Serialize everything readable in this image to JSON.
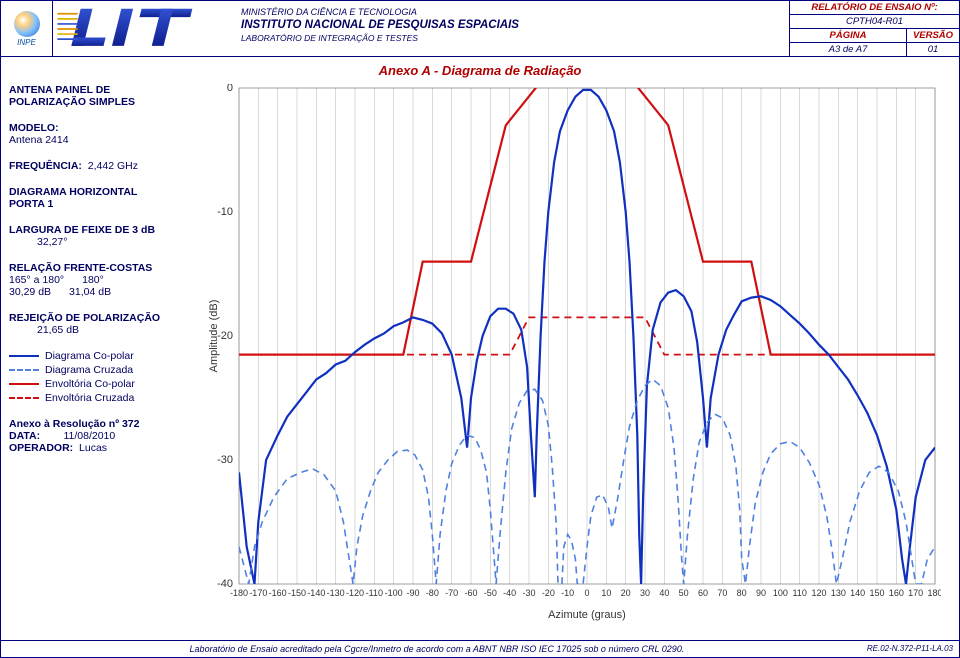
{
  "header": {
    "logo_text": "INPE",
    "lit_text": "LIT",
    "ministerio": "MINISTÉRIO DA CIÊNCIA E TECNOLOGIA",
    "instituto": "INSTITUTO NACIONAL DE PESQUISAS ESPACIAIS",
    "lab": "LABORATÓRIO DE INTEGRAÇÃO E TESTES",
    "info": {
      "relatorio_lbl": "RELATÓRIO DE ENSAIO Nº:",
      "relatorio_val": "CPTH04-R01",
      "pagina_lbl": "PÁGINA",
      "versao_lbl": "VERSÃO",
      "pagina_val": "A3   de   A7",
      "versao_val": "01"
    }
  },
  "title": "Anexo A - Diagrama de Radiação",
  "side": {
    "antena_l1": "ANTENA PAINEL DE",
    "antena_l2": "POLARIZAÇÃO SIMPLES",
    "modelo_lbl": "MODELO:",
    "modelo_val": "Antena 2414",
    "freq_lbl": "FREQUÊNCIA:",
    "freq_val": "2,442 GHz",
    "diag_lbl": "DIAGRAMA HORIZONTAL",
    "porta_lbl": "PORTA 1",
    "larg_lbl": "LARGURA DE FEIXE DE 3 dB",
    "larg_val": "32,27°",
    "rel_lbl": "RELAÇÃO FRENTE-COSTAS",
    "rel_c1a": "165° a 180°",
    "rel_c1b": "180°",
    "rel_c2a": "30,29 dB",
    "rel_c2b": "31,04 dB",
    "rej_lbl": "REJEIÇÃO DE POLARIZAÇÃO",
    "rej_val": "21,65 dB",
    "leg1": "Diagrama Co-polar",
    "leg2": "Diagrama Cruzada",
    "leg3": "Envoltória Co-polar",
    "leg4": "Envoltória Cruzada",
    "anexo": "Anexo à Resolução nº 372",
    "data_lbl": "DATA:",
    "data_val": "11/08/2010",
    "oper_lbl": "OPERADOR:",
    "oper_val": "Lucas"
  },
  "footer": {
    "text": "Laboratório de Ensaio acreditado pela Cgcre/Inmetro de acordo com a ABNT NBR ISO IEC 17025 sob o número CRL 0290.",
    "code": "RE.02-N.372-P11-LA.03"
  },
  "chart": {
    "type": "line",
    "x_label": "Azimute (graus)",
    "y_label": "Amplitude (dB)",
    "xlim": [
      -180,
      180
    ],
    "ylim": [
      -40,
      0
    ],
    "x_ticks": [
      -180,
      -170,
      -160,
      -150,
      -140,
      -130,
      -120,
      -110,
      -100,
      -90,
      -80,
      -70,
      -60,
      -50,
      -40,
      -30,
      -20,
      -10,
      0,
      10,
      20,
      30,
      40,
      50,
      60,
      70,
      80,
      90,
      100,
      110,
      120,
      130,
      140,
      150,
      160,
      170,
      180
    ],
    "y_ticks": [
      0,
      -10,
      -20,
      -30,
      -40
    ],
    "grid_color": "#c0c0c0",
    "background_color": "#ffffff",
    "axis_font_size": 9,
    "colors": {
      "copolar": "#1030c0",
      "cruzada": "#5080e0",
      "env_copolar": "#d01010",
      "env_cruzada": "#d01010"
    },
    "line_widths": {
      "copolar": 2.2,
      "cruzada": 1.6,
      "env_copolar": 2.2,
      "env_cruzada": 1.8
    },
    "env_copolar": [
      [
        -180,
        -21.5
      ],
      [
        -95,
        -21.5
      ],
      [
        -85,
        -14
      ],
      [
        -60,
        -14
      ],
      [
        -42,
        -3
      ],
      [
        -25,
        0.3
      ],
      [
        25,
        0.3
      ],
      [
        42,
        -3
      ],
      [
        60,
        -14
      ],
      [
        85,
        -14
      ],
      [
        95,
        -21.5
      ],
      [
        180,
        -21.5
      ]
    ],
    "env_cruzada": [
      [
        -180,
        -21.5
      ],
      [
        -40,
        -21.5
      ],
      [
        -30,
        -18.5
      ],
      [
        30,
        -18.5
      ],
      [
        40,
        -21.5
      ],
      [
        180,
        -21.5
      ]
    ],
    "copolar": [
      [
        -180,
        -31
      ],
      [
        -176,
        -37
      ],
      [
        -172,
        -40
      ],
      [
        -170,
        -35
      ],
      [
        -166,
        -30
      ],
      [
        -160,
        -28
      ],
      [
        -155,
        -26.5
      ],
      [
        -150,
        -25.5
      ],
      [
        -145,
        -24.5
      ],
      [
        -140,
        -23.5
      ],
      [
        -135,
        -23
      ],
      [
        -130,
        -22.3
      ],
      [
        -125,
        -22
      ],
      [
        -120,
        -21.3
      ],
      [
        -115,
        -20.7
      ],
      [
        -110,
        -20.2
      ],
      [
        -105,
        -19.8
      ],
      [
        -100,
        -19.2
      ],
      [
        -95,
        -18.9
      ],
      [
        -90,
        -18.5
      ],
      [
        -85,
        -18.7
      ],
      [
        -80,
        -19
      ],
      [
        -75,
        -19.8
      ],
      [
        -70,
        -21.5
      ],
      [
        -65,
        -25
      ],
      [
        -62,
        -29
      ],
      [
        -60,
        -25
      ],
      [
        -57,
        -22
      ],
      [
        -54,
        -20
      ],
      [
        -50,
        -18.4
      ],
      [
        -46,
        -17.8
      ],
      [
        -42,
        -17.8
      ],
      [
        -38,
        -18.2
      ],
      [
        -34,
        -19.5
      ],
      [
        -31,
        -22.5
      ],
      [
        -29,
        -28
      ],
      [
        -27,
        -33
      ],
      [
        -26,
        -28
      ],
      [
        -24,
        -20
      ],
      [
        -22,
        -14
      ],
      [
        -20,
        -10
      ],
      [
        -17,
        -6
      ],
      [
        -14,
        -3.5
      ],
      [
        -10,
        -1.8
      ],
      [
        -6,
        -0.7
      ],
      [
        -2,
        -0.15
      ],
      [
        2,
        -0.15
      ],
      [
        6,
        -0.7
      ],
      [
        10,
        -1.8
      ],
      [
        14,
        -3.5
      ],
      [
        17,
        -6
      ],
      [
        20,
        -10
      ],
      [
        22,
        -14
      ],
      [
        24,
        -20
      ],
      [
        26,
        -28
      ],
      [
        27,
        -36
      ],
      [
        28,
        -40
      ],
      [
        29,
        -33
      ],
      [
        31,
        -24
      ],
      [
        34,
        -19.5
      ],
      [
        38,
        -17.3
      ],
      [
        42,
        -16.5
      ],
      [
        46,
        -16.3
      ],
      [
        50,
        -16.8
      ],
      [
        54,
        -18
      ],
      [
        57,
        -20.5
      ],
      [
        60,
        -25
      ],
      [
        62,
        -29
      ],
      [
        64,
        -25
      ],
      [
        68,
        -21.5
      ],
      [
        72,
        -19.5
      ],
      [
        76,
        -18.3
      ],
      [
        80,
        -17.2
      ],
      [
        85,
        -16.9
      ],
      [
        90,
        -16.8
      ],
      [
        95,
        -17.1
      ],
      [
        100,
        -17.6
      ],
      [
        105,
        -18.3
      ],
      [
        110,
        -19
      ],
      [
        115,
        -19.8
      ],
      [
        120,
        -20.7
      ],
      [
        125,
        -21.5
      ],
      [
        130,
        -22.5
      ],
      [
        135,
        -23.5
      ],
      [
        140,
        -24.8
      ],
      [
        145,
        -26.2
      ],
      [
        150,
        -28
      ],
      [
        155,
        -30.5
      ],
      [
        160,
        -34
      ],
      [
        163,
        -38
      ],
      [
        165,
        -40
      ],
      [
        167,
        -37
      ],
      [
        170,
        -33
      ],
      [
        175,
        -30
      ],
      [
        180,
        -29
      ]
    ],
    "cruzada": [
      [
        -180,
        -37
      ],
      [
        -175,
        -40
      ],
      [
        -172,
        -37
      ],
      [
        -168,
        -35
      ],
      [
        -162,
        -33
      ],
      [
        -155,
        -31.5
      ],
      [
        -148,
        -31
      ],
      [
        -142,
        -30.7
      ],
      [
        -136,
        -31.2
      ],
      [
        -130,
        -32.5
      ],
      [
        -126,
        -35
      ],
      [
        -123,
        -38
      ],
      [
        -121,
        -40
      ],
      [
        -119,
        -37
      ],
      [
        -116,
        -34.5
      ],
      [
        -112,
        -32.5
      ],
      [
        -108,
        -31
      ],
      [
        -103,
        -30
      ],
      [
        -98,
        -29.3
      ],
      [
        -93,
        -29.2
      ],
      [
        -89,
        -29.6
      ],
      [
        -85,
        -30.8
      ],
      [
        -82,
        -33
      ],
      [
        -80,
        -36
      ],
      [
        -78,
        -40
      ],
      [
        -76,
        -36
      ],
      [
        -73,
        -32.5
      ],
      [
        -70,
        -30.3
      ],
      [
        -66,
        -28.8
      ],
      [
        -62,
        -28
      ],
      [
        -58,
        -28.2
      ],
      [
        -55,
        -29.2
      ],
      [
        -52,
        -31
      ],
      [
        -50,
        -34
      ],
      [
        -48,
        -38
      ],
      [
        -47,
        -40
      ],
      [
        -45,
        -36
      ],
      [
        -42,
        -31
      ],
      [
        -39,
        -27.5
      ],
      [
        -35,
        -25.4
      ],
      [
        -31,
        -24.4
      ],
      [
        -27,
        -24.3
      ],
      [
        -23,
        -25.2
      ],
      [
        -20,
        -27.2
      ],
      [
        -18,
        -30.5
      ],
      [
        -16,
        -35
      ],
      [
        -15,
        -40
      ],
      [
        -13,
        -40
      ],
      [
        -12,
        -37
      ],
      [
        -10,
        -36
      ],
      [
        -8,
        -36.5
      ],
      [
        -6,
        -38
      ],
      [
        -5,
        -40
      ],
      [
        -2,
        -40
      ],
      [
        0,
        -37
      ],
      [
        2,
        -34.5
      ],
      [
        5,
        -33
      ],
      [
        8,
        -32.8
      ],
      [
        11,
        -33.8
      ],
      [
        13,
        -35.5
      ],
      [
        16,
        -33
      ],
      [
        19,
        -30
      ],
      [
        22,
        -27.3
      ],
      [
        26,
        -25.2
      ],
      [
        30,
        -24
      ],
      [
        34,
        -23.5
      ],
      [
        38,
        -24
      ],
      [
        42,
        -25.8
      ],
      [
        45,
        -29
      ],
      [
        47,
        -33
      ],
      [
        49,
        -38
      ],
      [
        50,
        -40
      ],
      [
        52,
        -36
      ],
      [
        55,
        -31.5
      ],
      [
        58,
        -28.6
      ],
      [
        62,
        -27
      ],
      [
        66,
        -26.3
      ],
      [
        70,
        -26.6
      ],
      [
        74,
        -28
      ],
      [
        77,
        -30.5
      ],
      [
        79,
        -34
      ],
      [
        80,
        -38
      ],
      [
        82,
        -40
      ],
      [
        84,
        -37
      ],
      [
        87,
        -33.5
      ],
      [
        91,
        -31
      ],
      [
        95,
        -29.5
      ],
      [
        100,
        -28.7
      ],
      [
        105,
        -28.5
      ],
      [
        110,
        -29
      ],
      [
        115,
        -30.2
      ],
      [
        120,
        -32
      ],
      [
        124,
        -34.5
      ],
      [
        127,
        -37.5
      ],
      [
        129,
        -40
      ],
      [
        132,
        -38
      ],
      [
        136,
        -35
      ],
      [
        141,
        -32.5
      ],
      [
        146,
        -31
      ],
      [
        151,
        -30.5
      ],
      [
        156,
        -31
      ],
      [
        161,
        -32.5
      ],
      [
        165,
        -35
      ],
      [
        168,
        -38
      ],
      [
        170,
        -40
      ],
      [
        173,
        -40
      ],
      [
        176,
        -38
      ],
      [
        180,
        -37
      ]
    ]
  }
}
